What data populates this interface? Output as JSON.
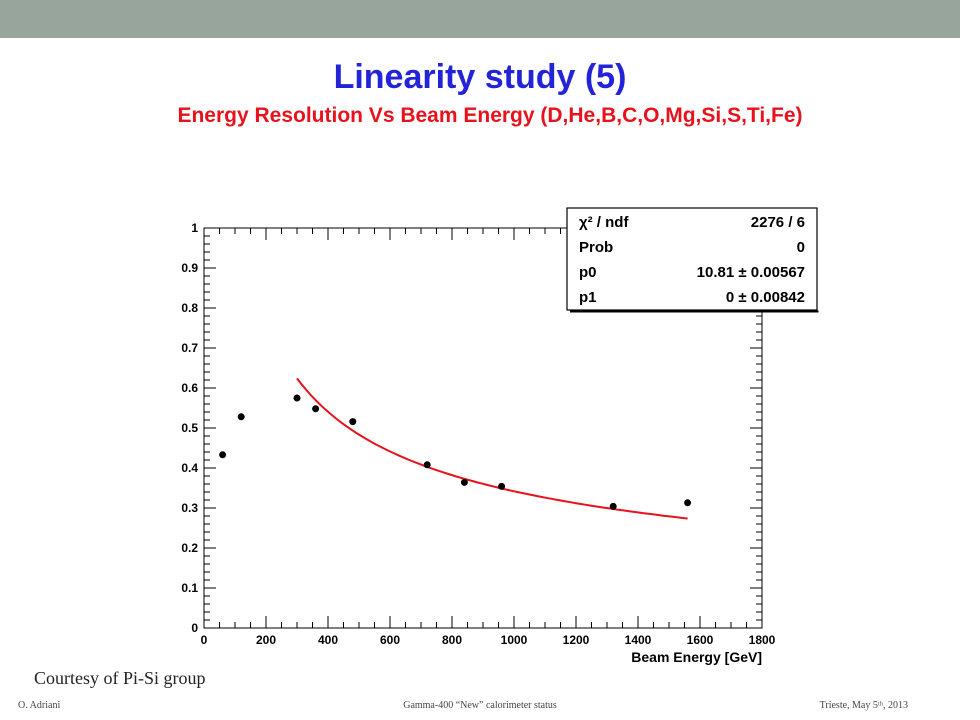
{
  "slide": {
    "title": "Linearity study (5)",
    "subtitle": "Energy Resolution Vs Beam Energy (D,He,B,C,O,Mg,Si,S,Ti,Fe)",
    "courtesy": "Courtesy of Pi-Si group",
    "footer_left": "O. Adriani",
    "footer_center": "Gamma-400 “New” calorimeter status",
    "footer_right": "Trieste, May 5ᵗʰ, 2013"
  },
  "colors": {
    "topbar": "#98a59c",
    "title": "#2323d8",
    "subtitle": "#e8121c",
    "fit": "#e8121c",
    "points": "#000000"
  },
  "chart_data": {
    "type": "scatter",
    "xlabel": "Beam Energy [GeV]",
    "ylabel": "",
    "xlim": [
      0,
      1800
    ],
    "ylim": [
      0,
      1
    ],
    "xticks": [
      0,
      200,
      400,
      600,
      800,
      1000,
      1200,
      1400,
      1600,
      1800
    ],
    "yticks": [
      0,
      0.1,
      0.2,
      0.3,
      0.4,
      0.5,
      0.6,
      0.7,
      0.8,
      0.9,
      1
    ],
    "grid": false,
    "series": [
      {
        "x": [
          60,
          120,
          300,
          360,
          480,
          720,
          840,
          960,
          1320,
          1560
        ],
        "y": [
          0.433,
          0.528,
          0.575,
          0.548,
          0.516,
          0.408,
          0.364,
          0.354,
          0.304,
          0.313
        ]
      }
    ],
    "fit": {
      "function": "p0/sqrt(E) + p1",
      "p0": 10.81,
      "p1": 0,
      "x_range": [
        300,
        1560
      ]
    },
    "stats_box": {
      "position": "top-right",
      "rows": [
        {
          "label": "χ² / ndf",
          "value": "2276 / 6"
        },
        {
          "label": "Prob",
          "value": "0"
        },
        {
          "label": "p0",
          "value": "10.81 ± 0.00567"
        },
        {
          "label": "p1",
          "value": "0 ± 0.00842"
        }
      ]
    }
  }
}
